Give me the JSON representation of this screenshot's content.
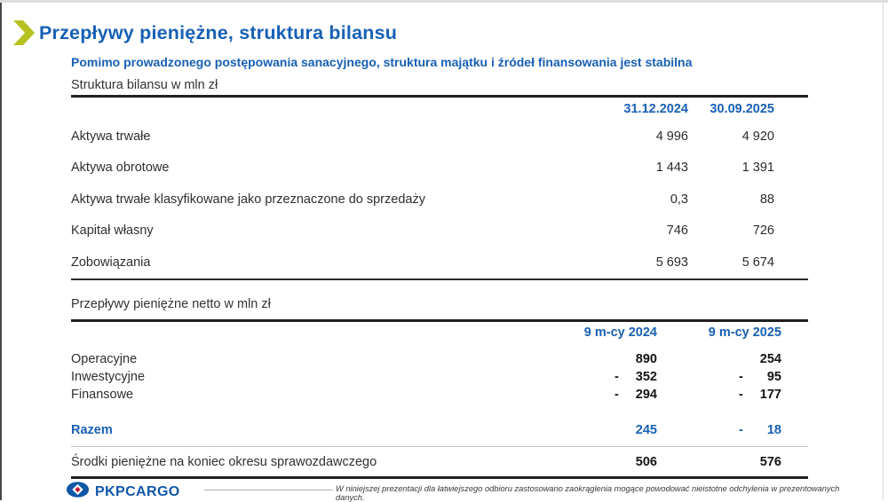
{
  "colors": {
    "accent_blue": "#1760b5",
    "chevron_green": "#b5c21f",
    "logo_blue": "#1057a7",
    "logo_red": "#c8102e"
  },
  "header": {
    "title": "Przepływy pieniężne, struktura bilansu",
    "subtitle": "Pomimo prowadzonego postępowania sanacyjnego, struktura majątku i źródeł finansowania jest stabilna"
  },
  "balance_table": {
    "caption": "Struktura bilansu w mln zł",
    "columns": [
      "31.12.2024",
      "30.09.2025"
    ],
    "rows": [
      {
        "label": "Aktywa trwałe",
        "values": [
          "4 996",
          "4 920"
        ]
      },
      {
        "label": "Aktywa obrotowe",
        "values": [
          "1 443",
          "1 391"
        ]
      },
      {
        "label": "Aktywa trwałe klasyfikowane jako przeznaczone do sprzedaży",
        "values": [
          "0,3",
          "88"
        ]
      },
      {
        "label": "Kapitał własny",
        "values": [
          "746",
          "726"
        ]
      },
      {
        "label": "Zobowiązania",
        "values": [
          "5 693",
          "5 674"
        ]
      }
    ]
  },
  "cashflow_table": {
    "caption": "Przepływy pieniężne netto w mln zł",
    "columns": [
      "9 m-cy 2024",
      "9 m-cy 2025"
    ],
    "rows": [
      {
        "label": "Operacyjne",
        "values": [
          {
            "sign": "",
            "num": "890"
          },
          {
            "sign": "",
            "num": "254"
          }
        ]
      },
      {
        "label": "Inwestycyjne",
        "values": [
          {
            "sign": "-",
            "num": "352"
          },
          {
            "sign": "-",
            "num": "95"
          }
        ]
      },
      {
        "label": "Finansowe",
        "values": [
          {
            "sign": "-",
            "num": "294"
          },
          {
            "sign": "-",
            "num": "177"
          }
        ]
      }
    ],
    "total_row": {
      "label": "Razem",
      "values": [
        {
          "sign": "",
          "num": "245"
        },
        {
          "sign": "-",
          "num": "18"
        }
      ]
    },
    "closing_row": {
      "label": "Środki pieniężne na koniec okresu sprawozdawczego",
      "values": [
        {
          "sign": "",
          "num": "506"
        },
        {
          "sign": "",
          "num": "576"
        }
      ]
    }
  },
  "footer": {
    "logo_text": "PKPCARGO",
    "disclaimer": "W niniejszej prezentacji dla łatwiejszego odbioru zastosowano zaokrąglenia mogące powodować nieistotne odchylenia w prezentowanych danych."
  }
}
